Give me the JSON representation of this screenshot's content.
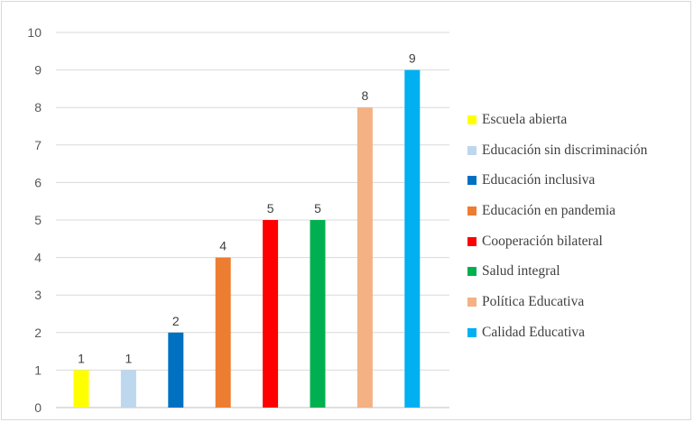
{
  "chart_data": {
    "type": "bar",
    "title": "",
    "xlabel": "",
    "ylabel": "",
    "ylim": [
      0,
      10
    ],
    "yticks": [
      "0",
      "1",
      "2",
      "3",
      "4",
      "5",
      "6",
      "7",
      "8",
      "9",
      "10"
    ],
    "grid": true,
    "legend_position": "right",
    "series": [
      {
        "name": "Escuela abierta",
        "value": 1,
        "label": "1",
        "color": "#ffff00"
      },
      {
        "name": "Educación sin discriminación",
        "value": 1,
        "label": "1",
        "color": "#bdd7ee"
      },
      {
        "name": "Educación inclusiva",
        "value": 2,
        "label": "2",
        "color": "#0070c0"
      },
      {
        "name": "Educación en pandemia",
        "value": 4,
        "label": "4",
        "color": "#ed7d31"
      },
      {
        "name": "Cooperación bilateral",
        "value": 5,
        "label": "5",
        "color": "#ff0000"
      },
      {
        "name": "Salud integral",
        "value": 5,
        "label": "5",
        "color": "#00b050"
      },
      {
        "name": "Política Educativa",
        "value": 8,
        "label": "8",
        "color": "#f4b183"
      },
      {
        "name": "Calidad Educativa",
        "value": 9,
        "label": "9",
        "color": "#00b0f0"
      }
    ]
  }
}
